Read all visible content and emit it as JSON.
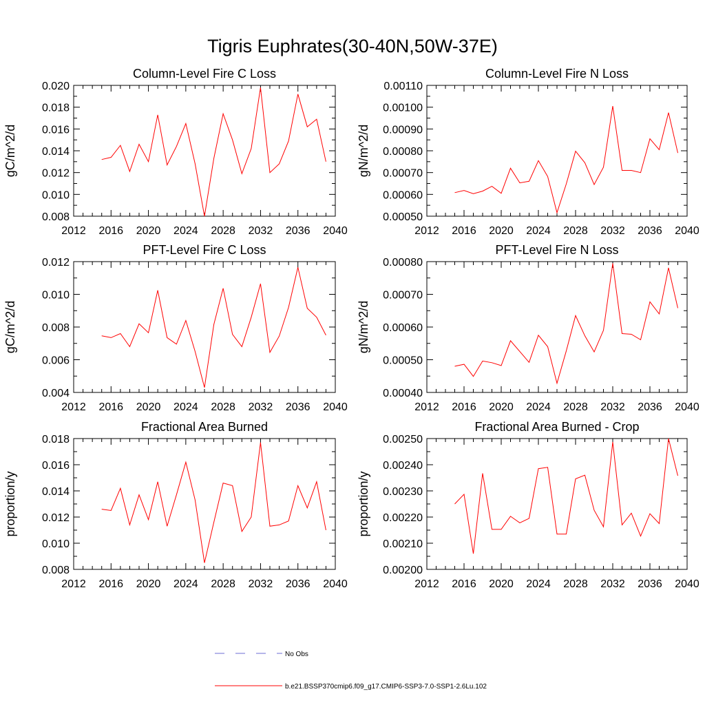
{
  "figure": {
    "title": "Tigris Euphrates(30-40N,50W-37E)"
  },
  "legend": {
    "items": [
      {
        "label": "No Obs",
        "color": "#6b6bd6",
        "dash": "dashed"
      },
      {
        "label": "b.e21.BSSP370cmip6.f09_g17.CMIP6-SSP3-7.0-SSP1-2.6Lu.102",
        "color": "#ff0000",
        "dash": "solid"
      }
    ]
  },
  "chart_data": [
    {
      "type": "line",
      "title": "Column-Level Fire C Loss",
      "ylabel": "gC/m^2/d",
      "xlim": [
        2012,
        2040
      ],
      "ylim": [
        0.008,
        0.02
      ],
      "xticks": [
        2012,
        2016,
        2020,
        2024,
        2028,
        2032,
        2036,
        2040
      ],
      "yticks": [
        "0.008",
        "0.010",
        "0.012",
        "0.014",
        "0.016",
        "0.018",
        "0.020"
      ],
      "x": [
        2015,
        2016,
        2017,
        2018,
        2019,
        2020,
        2021,
        2022,
        2023,
        2024,
        2025,
        2026,
        2027,
        2028,
        2029,
        2030,
        2031,
        2032,
        2033,
        2034,
        2035,
        2036,
        2037,
        2038,
        2039
      ],
      "series": [
        {
          "color": "#ff0000",
          "values": [
            0.0132,
            0.0134,
            0.0145,
            0.0121,
            0.0146,
            0.013,
            0.0173,
            0.0127,
            0.0144,
            0.0165,
            0.0128,
            0.008,
            0.0133,
            0.0174,
            0.015,
            0.0119,
            0.0142,
            0.0198,
            0.012,
            0.0128,
            0.0149,
            0.0192,
            0.0162,
            0.0169,
            0.013
          ]
        }
      ]
    },
    {
      "type": "line",
      "title": "Column-Level Fire N Loss",
      "ylabel": "gN/m^2/d",
      "xlim": [
        2012,
        2040
      ],
      "ylim": [
        0.0005,
        0.0011
      ],
      "xticks": [
        2012,
        2016,
        2020,
        2024,
        2028,
        2032,
        2036,
        2040
      ],
      "yticks": [
        "0.00050",
        "0.00060",
        "0.00070",
        "0.00080",
        "0.00090",
        "0.00100",
        "0.00110"
      ],
      "x": [
        2015,
        2016,
        2017,
        2018,
        2019,
        2020,
        2021,
        2022,
        2023,
        2024,
        2025,
        2026,
        2027,
        2028,
        2029,
        2030,
        2031,
        2032,
        2033,
        2034,
        2035,
        2036,
        2037,
        2038,
        2039
      ],
      "series": [
        {
          "color": "#ff0000",
          "values": [
            0.000608,
            0.000618,
            0.000603,
            0.000615,
            0.000637,
            0.000605,
            0.00072,
            0.000653,
            0.00066,
            0.000755,
            0.000682,
            0.000516,
            0.000648,
            0.000798,
            0.000745,
            0.000645,
            0.000725,
            0.001005,
            0.00071,
            0.00071,
            0.0007,
            0.000855,
            0.000805,
            0.000975,
            0.00079
          ]
        }
      ]
    },
    {
      "type": "line",
      "title": "PFT-Level Fire C Loss",
      "ylabel": "gC/m^2/d",
      "xlim": [
        2012,
        2040
      ],
      "ylim": [
        0.004,
        0.012
      ],
      "xticks": [
        2012,
        2016,
        2020,
        2024,
        2028,
        2032,
        2036,
        2040
      ],
      "yticks": [
        "0.004",
        "0.006",
        "0.008",
        "0.010",
        "0.012"
      ],
      "x": [
        2015,
        2016,
        2017,
        2018,
        2019,
        2020,
        2021,
        2022,
        2023,
        2024,
        2025,
        2026,
        2027,
        2028,
        2029,
        2030,
        2031,
        2032,
        2033,
        2034,
        2035,
        2036,
        2037,
        2038,
        2039
      ],
      "series": [
        {
          "color": "#ff0000",
          "values": [
            0.00746,
            0.00735,
            0.0076,
            0.0068,
            0.0082,
            0.00765,
            0.01025,
            0.00735,
            0.00695,
            0.0084,
            0.0065,
            0.0043,
            0.00815,
            0.01037,
            0.00755,
            0.0068,
            0.0086,
            0.01065,
            0.00645,
            0.00745,
            0.0092,
            0.01165,
            0.00915,
            0.0086,
            0.0075
          ]
        }
      ]
    },
    {
      "type": "line",
      "title": "PFT-Level Fire N Loss",
      "ylabel": "gN/m^2/d",
      "xlim": [
        2012,
        2040
      ],
      "ylim": [
        0.0004,
        0.0008
      ],
      "xticks": [
        2012,
        2016,
        2020,
        2024,
        2028,
        2032,
        2036,
        2040
      ],
      "yticks": [
        "0.00040",
        "0.00050",
        "0.00060",
        "0.00070",
        "0.00080"
      ],
      "x": [
        2015,
        2016,
        2017,
        2018,
        2019,
        2020,
        2021,
        2022,
        2023,
        2024,
        2025,
        2026,
        2027,
        2028,
        2029,
        2030,
        2031,
        2032,
        2033,
        2034,
        2035,
        2036,
        2037,
        2038,
        2039
      ],
      "series": [
        {
          "color": "#ff0000",
          "values": [
            0.00048,
            0.000486,
            0.000449,
            0.000496,
            0.000491,
            0.000482,
            0.000558,
            0.000525,
            0.000492,
            0.000575,
            0.00054,
            0.000428,
            0.000527,
            0.000635,
            0.000573,
            0.000524,
            0.00059,
            0.000795,
            0.00058,
            0.000578,
            0.000561,
            0.000677,
            0.00064,
            0.000781,
            0.000658
          ]
        }
      ]
    },
    {
      "type": "line",
      "title": "Fractional Area Burned",
      "ylabel": "proportion/y",
      "xlim": [
        2012,
        2040
      ],
      "ylim": [
        0.008,
        0.018
      ],
      "xticks": [
        2012,
        2016,
        2020,
        2024,
        2028,
        2032,
        2036,
        2040
      ],
      "yticks": [
        "0.008",
        "0.010",
        "0.012",
        "0.014",
        "0.016",
        "0.018"
      ],
      "x": [
        2015,
        2016,
        2017,
        2018,
        2019,
        2020,
        2021,
        2022,
        2023,
        2024,
        2025,
        2026,
        2027,
        2028,
        2029,
        2030,
        2031,
        2032,
        2033,
        2034,
        2035,
        2036,
        2037,
        2038,
        2039
      ],
      "series": [
        {
          "color": "#ff0000",
          "values": [
            0.0126,
            0.0125,
            0.0142,
            0.0114,
            0.0137,
            0.0118,
            0.0147,
            0.0113,
            0.0137,
            0.0162,
            0.0133,
            0.0085,
            0.0116,
            0.0146,
            0.0144,
            0.0109,
            0.012,
            0.0177,
            0.0113,
            0.0114,
            0.0117,
            0.0144,
            0.0127,
            0.0147,
            0.011
          ]
        }
      ]
    },
    {
      "type": "line",
      "title": "Fractional Area Burned - Crop",
      "ylabel": "proportion/y",
      "xlim": [
        2012,
        2040
      ],
      "ylim": [
        0.002,
        0.0025
      ],
      "xticks": [
        2012,
        2016,
        2020,
        2024,
        2028,
        2032,
        2036,
        2040
      ],
      "yticks": [
        "0.00200",
        "0.00210",
        "0.00220",
        "0.00230",
        "0.00240",
        "0.00250"
      ],
      "x": [
        2015,
        2016,
        2017,
        2018,
        2019,
        2020,
        2021,
        2022,
        2023,
        2024,
        2025,
        2026,
        2027,
        2028,
        2029,
        2030,
        2031,
        2032,
        2033,
        2034,
        2035,
        2036,
        2037,
        2038,
        2039
      ],
      "series": [
        {
          "color": "#ff0000",
          "values": [
            0.00225,
            0.002287,
            0.00206,
            0.002367,
            0.002153,
            0.002153,
            0.002203,
            0.002178,
            0.002195,
            0.002385,
            0.00239,
            0.002135,
            0.002135,
            0.002346,
            0.00236,
            0.002226,
            0.002163,
            0.002487,
            0.00217,
            0.002215,
            0.002127,
            0.002213,
            0.002175,
            0.0025,
            0.002358
          ]
        }
      ]
    }
  ]
}
